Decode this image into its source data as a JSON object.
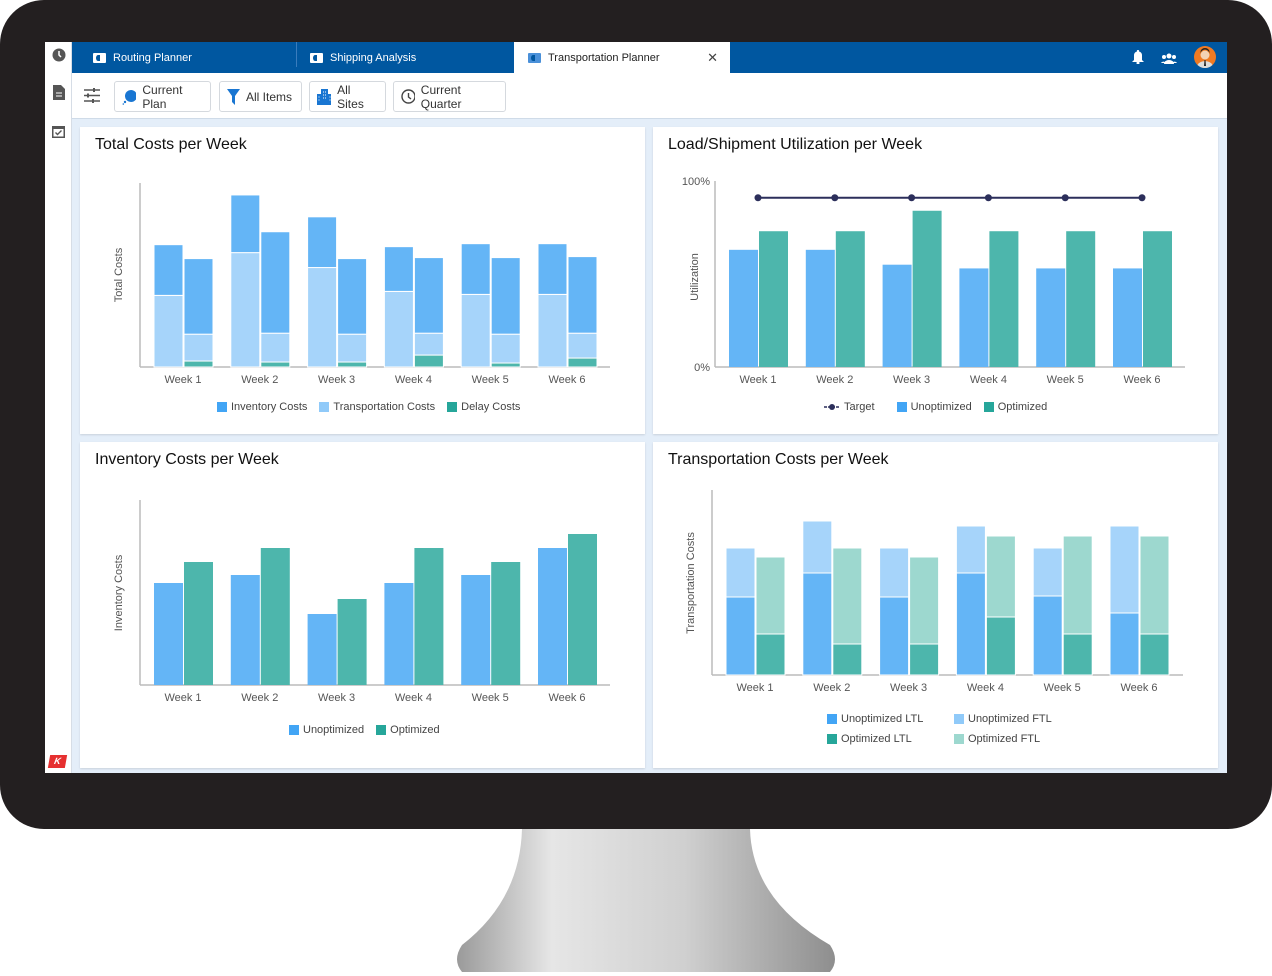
{
  "colors": {
    "tabbar": "#0057a0",
    "inventory": "#64b5f6",
    "transportation": "#a6d4fa",
    "delay": "#4db6ac",
    "unoptimized": "#64b5f6",
    "optimized": "#4db6ac",
    "optimized_ftl": "#9dd8cf",
    "target": "#2c2f5b"
  },
  "sidebar": {
    "items": [
      {
        "icon": "clock-icon"
      },
      {
        "icon": "document-icon"
      },
      {
        "icon": "calendar-check-icon"
      }
    ],
    "logo": "K"
  },
  "tabs": [
    {
      "label": "Routing Planner",
      "active": false
    },
    {
      "label": "Shipping Analysis",
      "active": false
    },
    {
      "label": "Transportation Planner",
      "active": true,
      "close": "✕"
    }
  ],
  "header_icons": [
    "bell-icon",
    "users-icon",
    "avatar"
  ],
  "toolbar": {
    "filters": [
      {
        "label": "Current Plan",
        "icon": "chat-bubble-icon"
      },
      {
        "label": "All Items",
        "icon": "filter-icon"
      },
      {
        "label": "All Sites",
        "icon": "building-icon"
      },
      {
        "label": "Current Quarter",
        "icon": "clock-icon"
      }
    ]
  },
  "chart_data": [
    {
      "id": "total",
      "type": "bar",
      "title": "Total Costs per Week",
      "ylabel": "Total Costs",
      "xlabel": "",
      "grid": false,
      "categories": [
        "Week 1",
        "Week 2",
        "Week 3",
        "Week 4",
        "Week 5",
        "Week 6"
      ],
      "legend": [
        "Inventory Costs",
        "Transportation Costs",
        "Delay Costs"
      ],
      "legend_position": "bottom",
      "stacked_groups": [
        {
          "series": [
            {
              "name": "Transportation Costs",
              "values": [
                72,
                115,
                100,
                76,
                73,
                73
              ]
            },
            {
              "name": "Inventory Costs",
              "values": [
                51,
                58,
                51,
                45,
                51,
                51
              ]
            }
          ]
        },
        {
          "series": [
            {
              "name": "Delay Costs",
              "values": [
                6,
                5,
                5,
                12,
                4,
                9
              ]
            },
            {
              "name": "Transportation Costs",
              "values": [
                27,
                29,
                28,
                22,
                29,
                25
              ]
            },
            {
              "name": "Inventory Costs",
              "values": [
                76,
                102,
                76,
                76,
                77,
                77
              ]
            }
          ]
        }
      ],
      "ylim": [
        0,
        185
      ]
    },
    {
      "id": "util",
      "type": "bar",
      "title": "Load/Shipment Utilization per Week",
      "ylabel": "Utilization",
      "xlabel": "",
      "grid": false,
      "categories": [
        "Week 1",
        "Week 2",
        "Week 3",
        "Week 4",
        "Week 5",
        "Week 6"
      ],
      "yticks": [
        "0%",
        "100%"
      ],
      "ylim": [
        0,
        100
      ],
      "legend_position": "bottom",
      "series": [
        {
          "name": "Target",
          "type": "line",
          "values": [
            91,
            91,
            91,
            91,
            91,
            91
          ]
        },
        {
          "name": "Unoptimized",
          "values": [
            63,
            63,
            55,
            53,
            53,
            53
          ]
        },
        {
          "name": "Optimized",
          "values": [
            73,
            73,
            84,
            73,
            73,
            73
          ]
        }
      ]
    },
    {
      "id": "inv",
      "type": "bar",
      "title": "Inventory Costs per Week",
      "ylabel": "Inventory Costs",
      "xlabel": "",
      "grid": false,
      "categories": [
        "Week 1",
        "Week 2",
        "Week 3",
        "Week 4",
        "Week 5",
        "Week 6"
      ],
      "ylim": [
        0,
        185
      ],
      "legend_position": "bottom",
      "series": [
        {
          "name": "Unoptimized",
          "values": [
            102,
            110,
            71,
            102,
            110,
            137
          ]
        },
        {
          "name": "Optimized",
          "values": [
            123,
            137,
            86,
            137,
            123,
            151
          ]
        }
      ]
    },
    {
      "id": "trans",
      "type": "bar",
      "title": "Transportation Costs per Week",
      "ylabel": "Transportation Costs",
      "xlabel": "",
      "grid": false,
      "categories": [
        "Week 1",
        "Week 2",
        "Week 3",
        "Week 4",
        "Week 5",
        "Week 6"
      ],
      "ylim": [
        0,
        185
      ],
      "legend_position": "bottom",
      "legend": [
        "Unoptimized LTL",
        "Unoptimized FTL",
        "Optimized LTL",
        "Optimized FTL"
      ],
      "stacked_groups": [
        {
          "series": [
            {
              "name": "Unoptimized LTL",
              "values": [
                78,
                102,
                78,
                102,
                79,
                62
              ]
            },
            {
              "name": "Unoptimized FTL",
              "values": [
                49,
                52,
                49,
                47,
                48,
                87
              ]
            }
          ]
        },
        {
          "series": [
            {
              "name": "Optimized LTL",
              "values": [
                41,
                31,
                31,
                58,
                41,
                41
              ]
            },
            {
              "name": "Optimized FTL",
              "values": [
                77,
                96,
                87,
                81,
                98,
                98
              ]
            }
          ]
        }
      ]
    }
  ]
}
